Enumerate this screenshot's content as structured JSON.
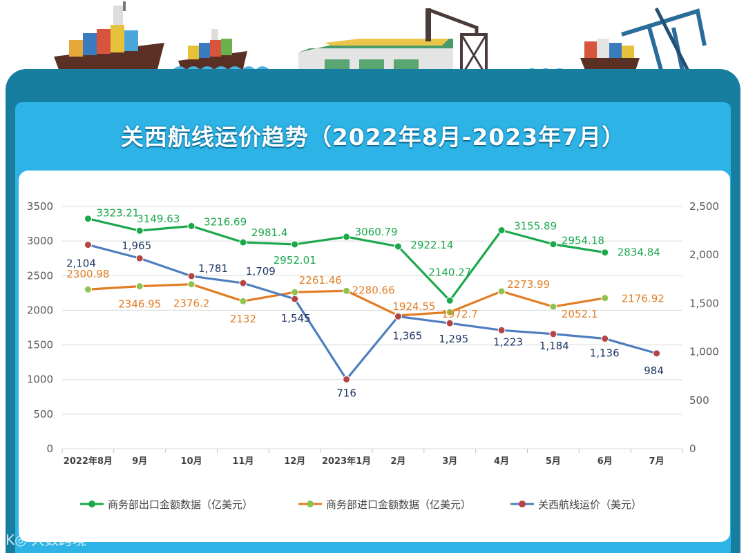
{
  "title": "关西航线运价趋势（2022年8月-2023年7月）",
  "watermark": "K◎ 大数跨境",
  "colors": {
    "green": "#1aa84b",
    "orange": "#e27d24",
    "blue": "#4e7ebd",
    "greenMarker": "#1aa84b",
    "orangeMarker": "#8fc34d",
    "blueMarker": "#b54545",
    "frame": "#177ea0",
    "panel": "#2eb3e6"
  },
  "chart_data": {
    "type": "line",
    "categories": [
      "2022年8月",
      "9月",
      "10月",
      "11月",
      "12月",
      "2023年1月",
      "2月",
      "3月",
      "4月",
      "5月",
      "6月",
      "7月"
    ],
    "series": [
      {
        "name": "商务部出口金额数据（亿美元）",
        "axis": "left",
        "values": [
          3323.21,
          3149.63,
          3216.69,
          2981.4,
          2952.01,
          3060.79,
          2922.14,
          2140.27,
          3155.89,
          2954.18,
          2834.84,
          null
        ],
        "labels": [
          "3323.21",
          "3149.63",
          "3216.69",
          "2981.4",
          "2952.01",
          "3060.79",
          "2922.14",
          "2140.27",
          "3155.89",
          "2954.18",
          "2834.84",
          ""
        ]
      },
      {
        "name": "商务部进口金额数据（亿美元）",
        "axis": "left",
        "values": [
          2300.98,
          2346.95,
          2376.2,
          2132,
          2261.46,
          2280.66,
          1924.55,
          1972.7,
          2273.99,
          2052.1,
          2176.92,
          null
        ],
        "labels": [
          "2300.98",
          "2346.95",
          "2376.2",
          "2132",
          "2261.46",
          "2280.66",
          "1924.55",
          "1972.7",
          "2273.99",
          "2052.1",
          "2176.92",
          ""
        ]
      },
      {
        "name": "关西航线运价（美元）",
        "axis": "right",
        "values": [
          2104,
          1965,
          1781,
          1709,
          1545,
          716,
          1365,
          1295,
          1223,
          1184,
          1136,
          984
        ],
        "labels": [
          "2,104",
          "1,965",
          "1,781",
          "1,709",
          "1,545",
          "716",
          "1,365",
          "1,295",
          "1,223",
          "1,184",
          "1,136",
          "984"
        ]
      }
    ],
    "yLeft": {
      "min": 0,
      "max": 3500,
      "step": 500,
      "ticks": [
        "0",
        "500",
        "1000",
        "1500",
        "2000",
        "2500",
        "3000",
        "3500"
      ]
    },
    "yRight": {
      "min": 0,
      "max": 2500,
      "step": 500,
      "ticks": [
        "0",
        "500",
        "1,000",
        "1,500",
        "2,000",
        "2,500"
      ]
    },
    "legend": [
      "商务部出口金额数据（亿美元）",
      "商务部进口金额数据（亿美元）",
      "关西航线运价（美元）"
    ],
    "legend_position": "bottom",
    "grid": true
  }
}
